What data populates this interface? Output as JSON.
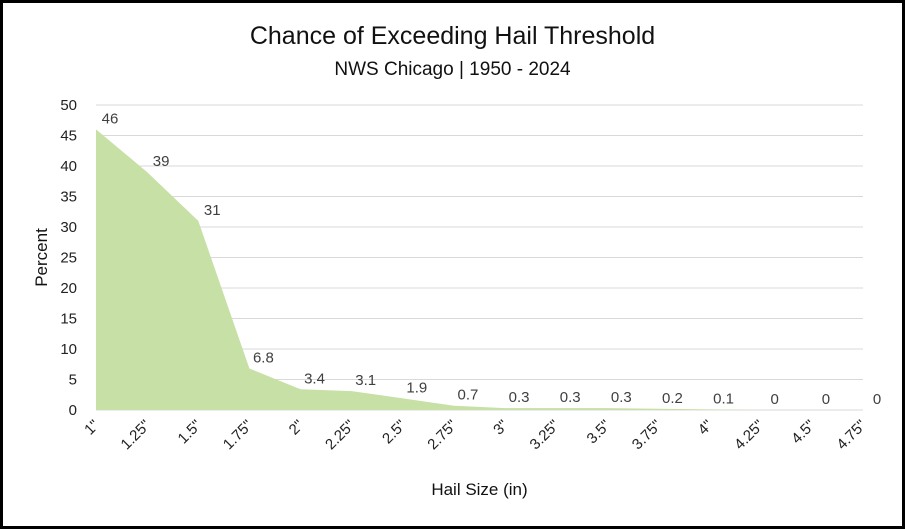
{
  "chart_data": {
    "type": "area",
    "title": "Chance of Exceeding Hail Threshold",
    "subtitle": "NWS Chicago | 1950 - 2024",
    "xlabel": "Hail Size (in)",
    "ylabel": "Percent",
    "categories": [
      "1\"",
      "1.25\"",
      "1.5\"",
      "1.75\"",
      "2\"",
      "2.25\"",
      "2.5\"",
      "2.75\"",
      "3\"",
      "3.25\"",
      "3.5\"",
      "3.75\"",
      "4\"",
      "4.25\"",
      "4.5\"",
      "4.75\""
    ],
    "values": [
      46,
      39,
      31,
      6.8,
      3.4,
      3.1,
      1.9,
      0.7,
      0.3,
      0.3,
      0.3,
      0.2,
      0.1,
      0,
      0,
      0
    ],
    "ylim": [
      0,
      50
    ],
    "yticks": [
      0,
      5,
      10,
      15,
      20,
      25,
      30,
      35,
      40,
      45,
      50
    ],
    "grid": true,
    "colors": {
      "area": "#c6e0a5",
      "grid": "#d9d9d9",
      "text": "#404040"
    }
  }
}
